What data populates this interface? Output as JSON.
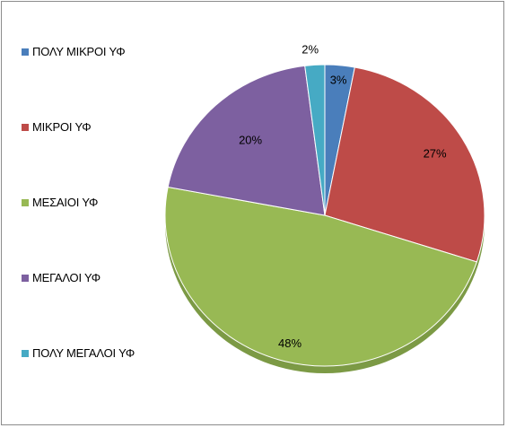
{
  "chart_data": {
    "type": "pie",
    "title": "",
    "legend_position": "left",
    "categories": [
      "ΠΟΛΥ ΜΙΚΡΟΙ ΥΦ",
      "ΜΙΚΡΟΙ ΥΦ",
      "ΜΕΣΑΙΟΙ ΥΦ",
      "ΜΕΓΑΛΟΙ ΥΦ",
      "ΠΟΛΥ ΜΕΓΑΛΟΙ ΥΦ"
    ],
    "values": [
      3,
      27,
      48,
      20,
      2
    ],
    "value_labels": [
      "3%",
      "27%",
      "48%",
      "20%",
      "2%"
    ],
    "colors": [
      "#4a7ebb",
      "#be4b48",
      "#98b954",
      "#7d60a0",
      "#46aac4"
    ]
  }
}
